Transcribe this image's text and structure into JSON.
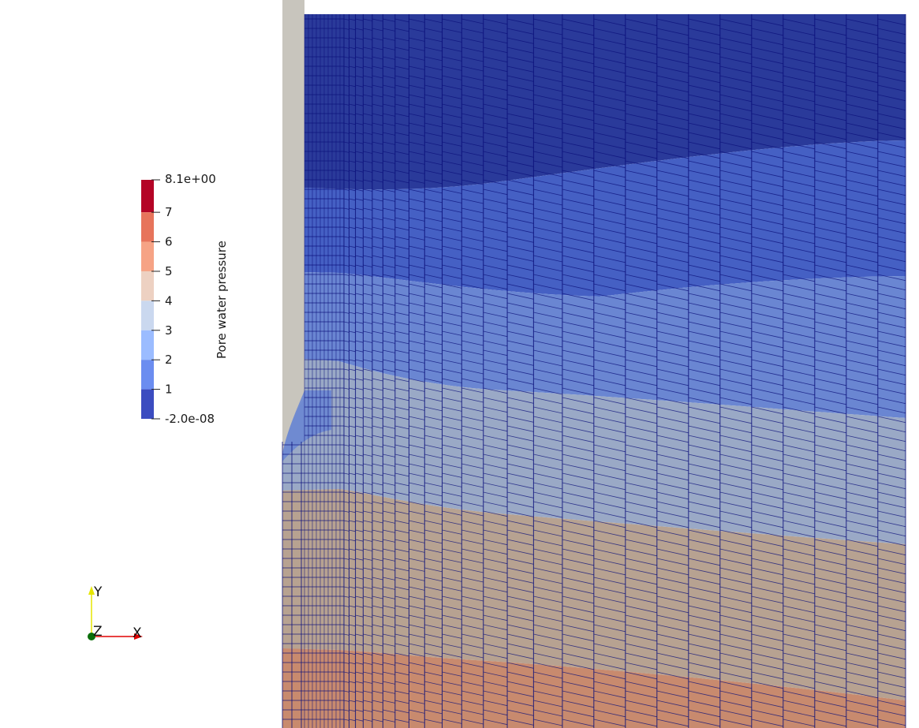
{
  "legend": {
    "title": "Pore water pressure",
    "max_label": "8.1e+00",
    "min_label": "-2.0e-08",
    "ticks": [
      "7",
      "6",
      "5",
      "4",
      "3",
      "2",
      "1"
    ],
    "bands": [
      {
        "from": 7,
        "to": 8.1,
        "color": "#b40426"
      },
      {
        "from": 6,
        "to": 7,
        "color": "#e7745b"
      },
      {
        "from": 5,
        "to": 6,
        "color": "#f6a385"
      },
      {
        "from": 4,
        "to": 5,
        "color": "#edd1c2"
      },
      {
        "from": 3,
        "to": 4,
        "color": "#cad8ef"
      },
      {
        "from": 2,
        "to": 3,
        "color": "#9bbcff"
      },
      {
        "from": 1,
        "to": 2,
        "color": "#6b8df0"
      },
      {
        "from": 0,
        "to": 1,
        "color": "#3b4cc0"
      }
    ]
  },
  "orientation_axes": {
    "x_label": "X",
    "y_label": "Y",
    "z_label": "Z",
    "x_color": "#e00000",
    "y_color": "#e6e600",
    "z_color": "#0a6e0a"
  },
  "colors": {
    "background": "#ffffff",
    "wall": "#c8c5bd",
    "mesh_lines": "#0b0f7a",
    "band_top": "#2a3a9a",
    "band_2": "#4560c4",
    "band_3": "#6f8cd6",
    "band_4": "#9aa9c4",
    "band_5": "#b8a394",
    "band_6": "#c98c70"
  }
}
